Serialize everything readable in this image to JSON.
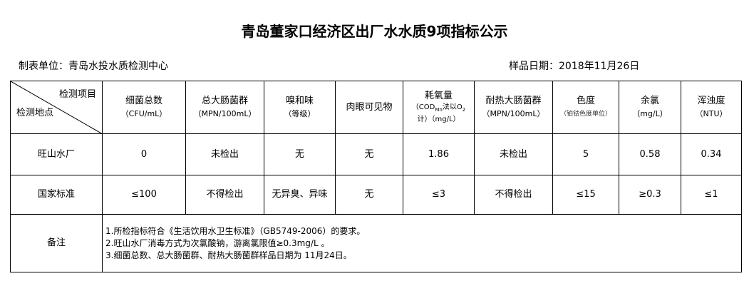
{
  "title": "青岛董家口经济区出厂水水质9项指标公示",
  "unit": "制表单位：青岛水投水质检测中心",
  "date": "样品日期：2018年11月26日",
  "corner": {
    "top": "检测项目",
    "bottom": "检测地点"
  },
  "headers": [
    {
      "name": "细菌总数",
      "unit": "（CFU/mL）"
    },
    {
      "name": "总大肠菌群",
      "unit": "（MPN/100mL）"
    },
    {
      "name": "嗅和味",
      "unit": "（等级）"
    },
    {
      "name": "肉眼可见物",
      "unit": ""
    },
    {
      "name": "耗氧量",
      "unit": "（COD",
      "sub": "Mn",
      "unit2": "法以O",
      "sub2": "2",
      "unit3": "计）（mg/L）"
    },
    {
      "name": "耐热大肠菌群",
      "unit": "（MPN/100mL）"
    },
    {
      "name": "色度",
      "unit": "（铂钴色度单位）"
    },
    {
      "name": "余氯",
      "unit": "（mg/L）"
    },
    {
      "name": "浑浊度",
      "unit": "（NTU）"
    }
  ],
  "rows": [
    {
      "label": "旺山水厂",
      "values": [
        "0",
        "未检出",
        "无",
        "无",
        "1.86",
        "未检出",
        "5",
        "0.58",
        "0.34"
      ]
    },
    {
      "label": "国家标准",
      "values": [
        "≤100",
        "不得检出",
        "无异臭、异味",
        "无",
        "≤3",
        "不得检出",
        "≤15",
        "≥0.3",
        "≤1"
      ]
    }
  ],
  "remarks": {
    "label": "备注",
    "lines": [
      "1.所检指标符合《生活饮用水卫生标准》（GB5749-2006）的要求。",
      "2.旺山水厂消毒方式为次氯酸钠，游离氯限值≥0.3mg/L 。",
      "3.细菌总数、总大肠菌群、耐热大肠菌群样品日期为 11月24日。"
    ]
  }
}
